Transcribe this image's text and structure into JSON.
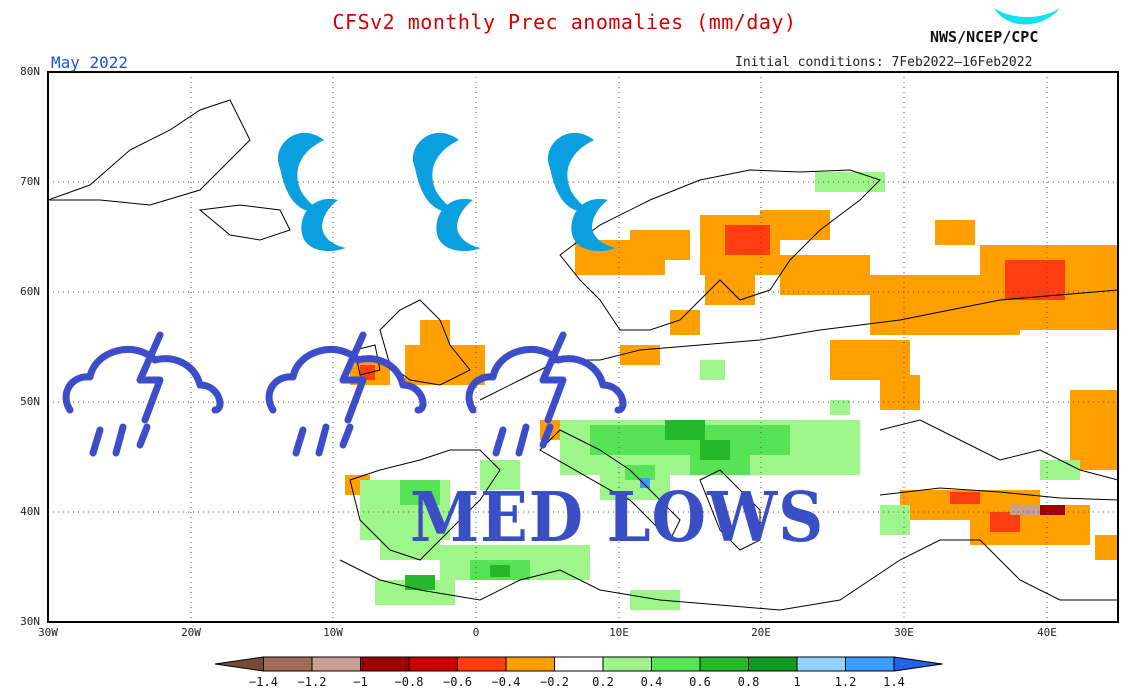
{
  "header": {
    "title": "CFSv2 monthly Prec anomalies (mm/day)",
    "agency": "NWS/NCEP/CPC",
    "month": "May 2022",
    "initial_conditions": "Initial conditions: 7Feb2022—16Feb2022"
  },
  "axes": {
    "lat_labels": [
      "80N",
      "70N",
      "60N",
      "50N",
      "40N",
      "30N"
    ],
    "lon_labels": [
      "30W",
      "20W",
      "10W",
      "0",
      "10E",
      "20E",
      "30E",
      "40E"
    ]
  },
  "colorbar": {
    "labels": [
      "−1.4",
      "−1.2",
      "−1",
      "−0.8",
      "−0.6",
      "−0.4",
      "−0.2",
      "0.2",
      "0.4",
      "0.6",
      "0.8",
      "1",
      "1.2",
      "1.4"
    ],
    "colors": [
      "#7a4a36",
      "#a36b5a",
      "#c8a090",
      "#9c0000",
      "#cc0000",
      "#ff3d10",
      "#ffa000",
      "#ffffff",
      "#9ef58a",
      "#56e355",
      "#26b82a",
      "#109a20",
      "#8fd3ff",
      "#3a9cff",
      "#1f64e6"
    ]
  },
  "overlay": {
    "banner": "MED LOWS",
    "icons": [
      "raindrops-icon",
      "raindrops-icon",
      "raindrops-icon",
      "storm-cloud-icon",
      "storm-cloud-icon",
      "storm-cloud-icon"
    ],
    "icon_color_rain": "#0aa0e0",
    "icon_color_storm": "#3d4cc9"
  }
}
